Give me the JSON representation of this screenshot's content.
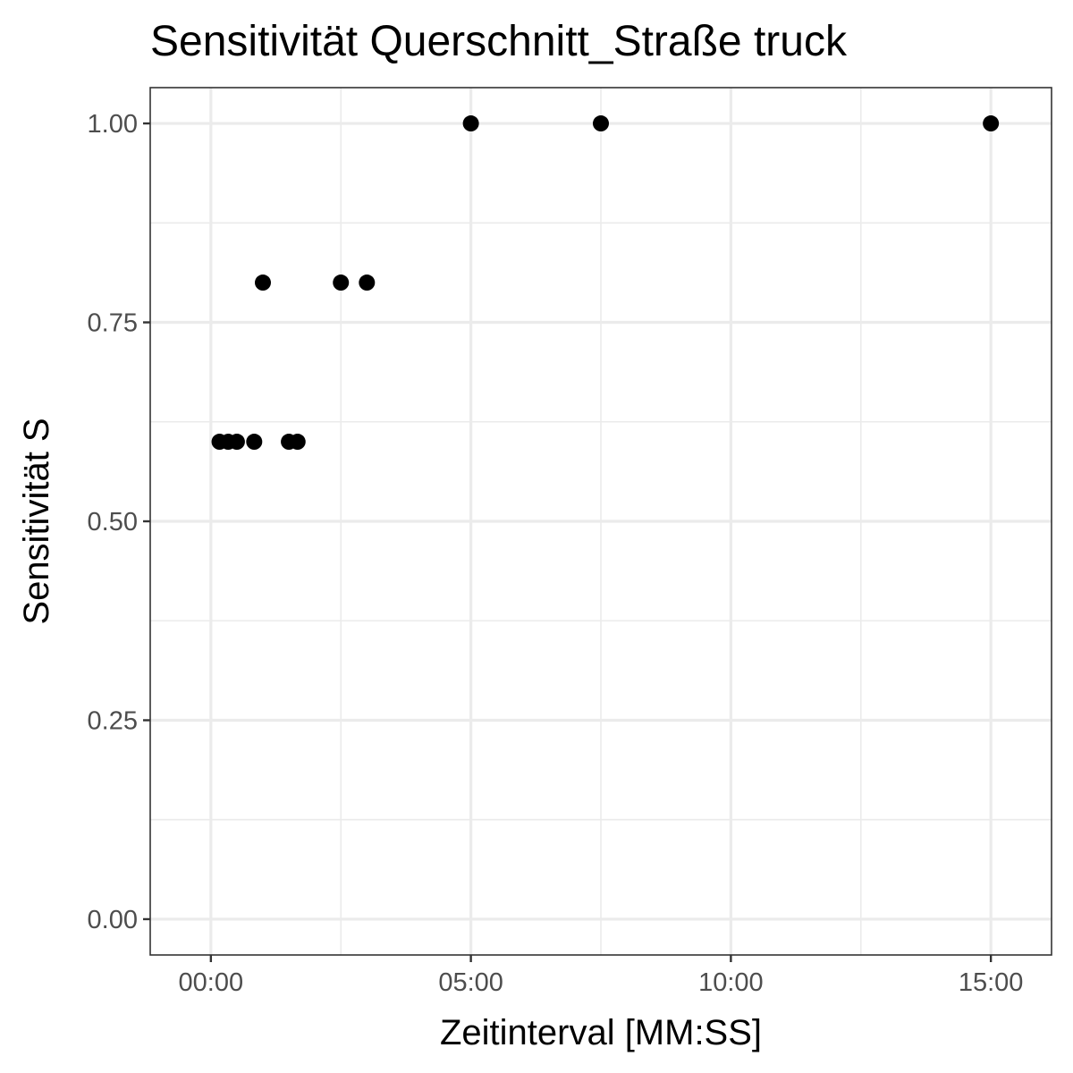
{
  "chart_data": {
    "type": "scatter",
    "title": "Sensitivität Querschnitt_Straße truck",
    "xlabel": "Zeitinterval [MM:SS]",
    "ylabel": "Sensitivität S",
    "x_unit": "seconds",
    "xlim_seconds": [
      -70,
      970
    ],
    "ylim": [
      -0.045,
      1.045
    ],
    "x_ticks_seconds": [
      0,
      300,
      600,
      900
    ],
    "x_tick_labels": [
      "00:00",
      "05:00",
      "10:00",
      "15:00"
    ],
    "x_minor_ticks_seconds": [
      150,
      450,
      750
    ],
    "y_ticks": [
      0.0,
      0.25,
      0.5,
      0.75,
      1.0
    ],
    "y_tick_labels": [
      "0.00",
      "0.25",
      "0.50",
      "0.75",
      "1.00"
    ],
    "y_minor_ticks": [
      0.125,
      0.375,
      0.625,
      0.875
    ],
    "grid": true,
    "x_seconds": [
      10,
      20,
      30,
      50,
      60,
      90,
      100,
      150,
      180,
      300,
      450,
      900
    ],
    "y": [
      0.6,
      0.6,
      0.6,
      0.6,
      0.8,
      0.6,
      0.6,
      0.8,
      0.8,
      1.0,
      1.0,
      1.0
    ],
    "point_color": "#000000"
  }
}
